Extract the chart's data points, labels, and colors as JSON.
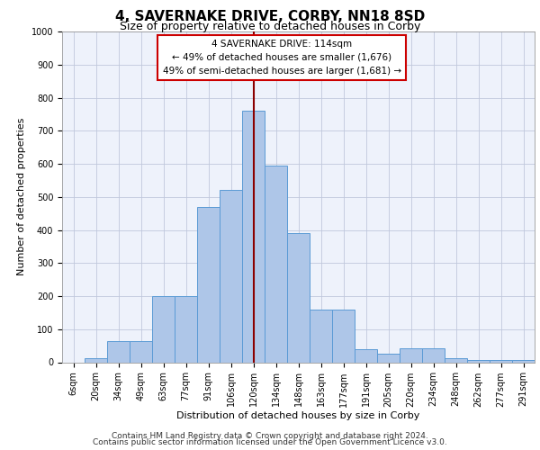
{
  "title1": "4, SAVERNAKE DRIVE, CORBY, NN18 8SD",
  "title2": "Size of property relative to detached houses in Corby",
  "xlabel": "Distribution of detached houses by size in Corby",
  "ylabel": "Number of detached properties",
  "categories": [
    "6sqm",
    "20sqm",
    "34sqm",
    "49sqm",
    "63sqm",
    "77sqm",
    "91sqm",
    "106sqm",
    "120sqm",
    "134sqm",
    "148sqm",
    "163sqm",
    "177sqm",
    "191sqm",
    "205sqm",
    "220sqm",
    "234sqm",
    "248sqm",
    "262sqm",
    "277sqm",
    "291sqm"
  ],
  "values": [
    0,
    12,
    65,
    65,
    200,
    200,
    470,
    520,
    760,
    595,
    390,
    160,
    160,
    40,
    27,
    43,
    43,
    12,
    7,
    7,
    7
  ],
  "bar_color": "#aec6e8",
  "bar_edge_color": "#5b9bd5",
  "vline_x_index": 8,
  "vline_color": "#8b0000",
  "annotation_title": "4 SAVERNAKE DRIVE: 114sqm",
  "annotation_line1": "← 49% of detached houses are smaller (1,676)",
  "annotation_line2": "49% of semi-detached houses are larger (1,681) →",
  "annotation_box_color": "#ffffff",
  "annotation_border_color": "#cc0000",
  "ylim": [
    0,
    1000
  ],
  "yticks": [
    0,
    100,
    200,
    300,
    400,
    500,
    600,
    700,
    800,
    900,
    1000
  ],
  "bg_color": "#eef2fb",
  "footer1": "Contains HM Land Registry data © Crown copyright and database right 2024.",
  "footer2": "Contains public sector information licensed under the Open Government Licence v3.0.",
  "title1_fontsize": 11,
  "title2_fontsize": 9,
  "axis_label_fontsize": 8,
  "tick_fontsize": 7,
  "footer_fontsize": 6.5
}
